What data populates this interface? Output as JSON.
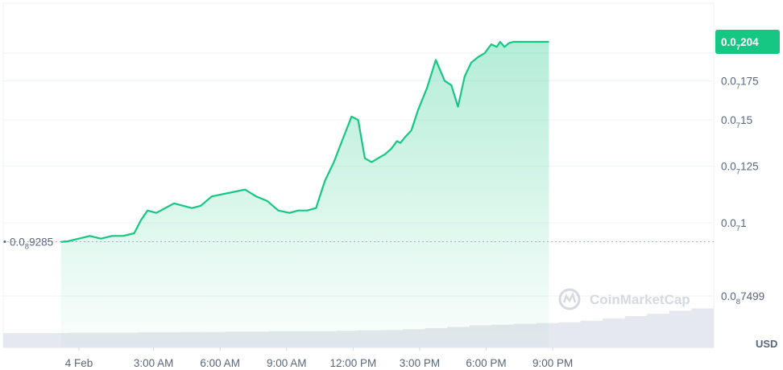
{
  "chart_data": {
    "type": "area",
    "currency_label": "USD",
    "watermark": "CoinMarketCap",
    "y_range_log10": [
      -8.25,
      -6.65
    ],
    "y_ticks": [
      {
        "main": "0.0",
        "sub": "7",
        "rest": "204",
        "value": 2.04e-08
      },
      {
        "main": "0.0",
        "sub": "7",
        "rest": "175",
        "value": 1.75e-08
      },
      {
        "main": "0.0",
        "sub": "7",
        "rest": "15",
        "value": 1.5e-08
      },
      {
        "main": "0.0",
        "sub": "7",
        "rest": "125",
        "value": 1.25e-08
      },
      {
        "main": "0.0",
        "sub": "7",
        "rest": "1",
        "value": 1e-08
      },
      {
        "main": "0.0",
        "sub": "8",
        "rest": "7499",
        "value": 7.499e-09
      }
    ],
    "x_ticks": [
      "4 Feb",
      "3:00 AM",
      "6:00 AM",
      "9:00 AM",
      "12:00 PM",
      "3:00 PM",
      "6:00 PM",
      "9:00 PM"
    ],
    "x_tick_hours": [
      0,
      3,
      6,
      9,
      12,
      15,
      18,
      21
    ],
    "start_price": {
      "main": "0.0",
      "sub": "8",
      "rest": "9285",
      "value": 9.285e-09
    },
    "current_price": {
      "main": "0.0",
      "sub": "7",
      "rest": "204",
      "value": 2.04e-08
    },
    "colors": {
      "line": "#16c784",
      "area_top": "#16c784",
      "baseline": "#a6b0c3",
      "start_segment": "#ea3943",
      "tag_bg": "#16c784",
      "volume": "#e5e8ee",
      "grid": "#eff2f5"
    },
    "series": [
      {
        "x": [
          -0.3,
          0.0,
          0.5,
          1.0,
          1.5,
          2.0,
          2.5,
          3.0,
          3.3,
          3.6,
          4.0,
          4.4,
          4.8,
          5.2,
          5.6,
          6.0,
          6.5,
          7.0,
          7.5,
          8.0,
          8.5,
          9.0,
          9.5,
          10.0,
          10.4,
          10.8,
          11.2,
          11.6,
          12.0,
          12.4,
          12.8,
          13.1,
          13.4,
          13.7,
          14.0,
          14.3,
          14.6,
          14.85,
          15.0,
          15.2,
          15.5,
          15.8,
          16.2,
          16.6,
          17.0,
          17.3,
          17.6,
          17.9,
          18.2,
          18.5,
          18.8,
          19.1,
          19.35,
          19.5,
          19.7,
          19.9,
          20.1,
          20.2,
          20.4,
          20.7,
          21.0,
          21.2,
          21.35,
          21.5,
          21.7
        ],
        "y": [
          9.28e-09,
          9.3e-09,
          9.4e-09,
          9.5e-09,
          9.4e-09,
          9.5e-09,
          9.5e-09,
          9.6e-09,
          1.01e-08,
          1.05e-08,
          1.04e-08,
          1.06e-08,
          1.08e-08,
          1.07e-08,
          1.06e-08,
          1.07e-08,
          1.11e-08,
          1.12e-08,
          1.13e-08,
          1.14e-08,
          1.11e-08,
          1.09e-08,
          1.05e-08,
          1.04e-08,
          1.05e-08,
          1.05e-08,
          1.06e-08,
          1.18e-08,
          1.27e-08,
          1.39e-08,
          1.52e-08,
          1.5e-08,
          1.29e-08,
          1.27e-08,
          1.29e-08,
          1.31e-08,
          1.34e-08,
          1.38e-08,
          1.37e-08,
          1.4e-08,
          1.44e-08,
          1.56e-08,
          1.7e-08,
          1.9e-08,
          1.75e-08,
          1.72e-08,
          1.58e-08,
          1.78e-08,
          1.88e-08,
          1.92e-08,
          1.95e-08,
          2.02e-08,
          2e-08,
          2.04e-08,
          2e-08,
          2.03e-08,
          2.04e-08,
          2.04e-08,
          2.04e-08,
          2.04e-08,
          2.04e-08,
          2.04e-08,
          2.04e-08,
          2.04e-08,
          2.04e-08
        ]
      }
    ],
    "volume_series": [
      0.08,
      0.08,
      0.08,
      0.09,
      0.09,
      0.09,
      0.1,
      0.1,
      0.11,
      0.11,
      0.12,
      0.12,
      0.13,
      0.13,
      0.13,
      0.14,
      0.15,
      0.16,
      0.18,
      0.21,
      0.24,
      0.28,
      0.3,
      0.32,
      0.34,
      0.36,
      0.4,
      0.46,
      0.52,
      0.58,
      0.66,
      0.72
    ]
  }
}
